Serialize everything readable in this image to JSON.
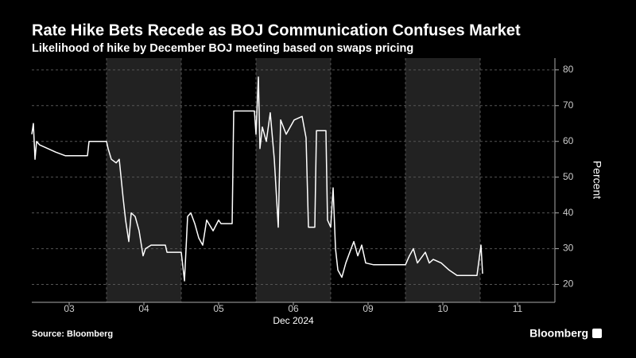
{
  "chart_data": {
    "type": "line",
    "title": "Rate Hike Bets Recede as BOJ Communication Confuses Market",
    "subtitle": "Likelihood of hike by December BOJ meeting based on swaps pricing",
    "y_label": "Percent",
    "x_sublabel": "Dec 2024",
    "source": "Source: Bloomberg",
    "brand": "Bloomberg",
    "x": [
      0,
      0.021,
      0.043,
      0.064,
      0.106,
      0.213,
      0.319,
      0.447,
      0.745,
      0.766,
      1.0,
      1.021,
      1.064,
      1.128,
      1.17,
      1.223,
      1.255,
      1.298,
      1.33,
      1.383,
      1.436,
      1.489,
      1.521,
      1.596,
      1.787,
      1.809,
      2.0,
      2.043,
      2.085,
      2.128,
      2.181,
      2.234,
      2.287,
      2.34,
      2.426,
      2.5,
      2.532,
      2.681,
      2.702,
      2.979,
      3.0,
      3.032,
      3.053,
      3.085,
      3.138,
      3.191,
      3.245,
      3.298,
      3.33,
      3.404,
      3.511,
      3.617,
      3.67,
      3.702,
      3.787,
      3.809,
      3.936,
      3.957,
      4.0,
      4.032,
      4.064,
      4.096,
      4.149,
      4.202,
      4.255,
      4.309,
      4.362,
      4.415,
      4.468,
      4.574,
      5.0,
      5.053,
      5.106,
      5.16,
      5.266,
      5.319,
      5.372,
      5.479,
      5.585,
      5.691,
      5.957,
      6.011,
      6.032
    ],
    "series": [
      {
        "name": "Likelihood of hike",
        "color": "#ffffff",
        "values": [
          62,
          65,
          55,
          60,
          59,
          58,
          57,
          56,
          56,
          60,
          60,
          58,
          55,
          54,
          55,
          44,
          38,
          32,
          40,
          39,
          35,
          28,
          30,
          31,
          31,
          29,
          29,
          21,
          39,
          40,
          37,
          33,
          31,
          38,
          35,
          38,
          37,
          37,
          68.5,
          68.5,
          62,
          78,
          58,
          64,
          60,
          68,
          55,
          36,
          66,
          62,
          66,
          67,
          61,
          36,
          36,
          63,
          63,
          38,
          36,
          47,
          30,
          24,
          22,
          26,
          29,
          32,
          28,
          31,
          26,
          25.5,
          25.5,
          28,
          30,
          26,
          29,
          26,
          27,
          26,
          24,
          22.5,
          22.5,
          31,
          23
        ]
      }
    ],
    "xlim": [
      0,
      7
    ],
    "xticks": [
      {
        "value": 0.5,
        "label": "03"
      },
      {
        "value": 1.5,
        "label": "04"
      },
      {
        "value": 2.5,
        "label": "05"
      },
      {
        "value": 3.5,
        "label": "06"
      },
      {
        "value": 4.5,
        "label": "09"
      },
      {
        "value": 5.5,
        "label": "10"
      },
      {
        "value": 6.5,
        "label": "11"
      }
    ],
    "ylim": [
      15,
      83.3
    ],
    "yticks": [
      20,
      30,
      40,
      50,
      60,
      70,
      80
    ],
    "grid": true
  }
}
